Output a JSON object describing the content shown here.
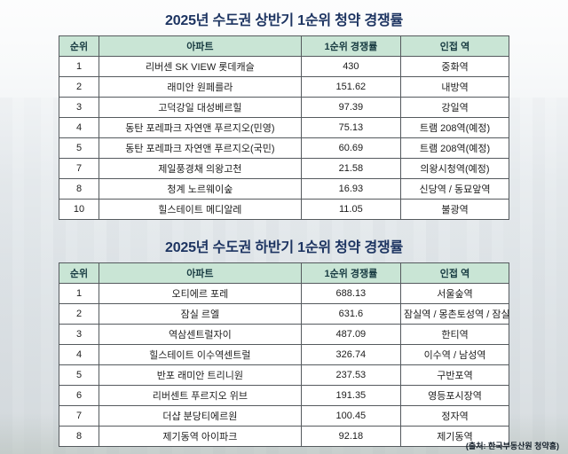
{
  "chart_data": [
    {
      "type": "table",
      "title": "2025년 수도권 상반기 1순위 청약 경쟁률",
      "columns": [
        "순위",
        "아파트",
        "1순위 경쟁률",
        "인접 역"
      ],
      "rows": [
        [
          "1",
          "리버센 SK VIEW 롯데캐슬",
          "430",
          "중화역"
        ],
        [
          "2",
          "래미안 원페를라",
          "151.62",
          "내방역"
        ],
        [
          "3",
          "고덕강일 대성베르힐",
          "97.39",
          "강일역"
        ],
        [
          "4",
          "동탄 포레파크 자연앤 푸르지오(민영)",
          "75.13",
          "트램 208역(예정)"
        ],
        [
          "5",
          "동탄 포레파크 자연앤 푸르지오(국민)",
          "60.69",
          "트램 208역(예정)"
        ],
        [
          "7",
          "제일풍경채 의왕고천",
          "21.58",
          "의왕시청역(예정)"
        ],
        [
          "8",
          "청계 노르웨이숲",
          "16.93",
          "신당역 / 동묘앞역"
        ],
        [
          "10",
          "힐스테이트 메디알레",
          "11.05",
          "불광역"
        ]
      ]
    },
    {
      "type": "table",
      "title": "2025년 수도권 하반기 1순위 청약 경쟁률",
      "columns": [
        "순위",
        "아파트",
        "1순위 경쟁률",
        "인접 역"
      ],
      "rows": [
        [
          "1",
          "오티에르 포레",
          "688.13",
          "서울숲역"
        ],
        [
          "2",
          "잠실 르엘",
          "631.6",
          "잠실역 / 몽촌토성역 / 잠실나루역"
        ],
        [
          "3",
          "역삼센트럴자이",
          "487.09",
          "한티역"
        ],
        [
          "4",
          "힐스테이트 이수역센트럴",
          "326.74",
          "이수역 / 남성역"
        ],
        [
          "5",
          "반포 래미안 트리니원",
          "237.53",
          "구반포역"
        ],
        [
          "6",
          "리버센트 푸르지오 위브",
          "191.35",
          "영등포시장역"
        ],
        [
          "7",
          "더샵 분당티에르원",
          "100.45",
          "정자역"
        ],
        [
          "8",
          "제기동역 아이파크",
          "92.18",
          "제기동역"
        ]
      ]
    }
  ],
  "footer": {
    "source": "(출처: 한국부동산원 청약홈)"
  },
  "colors": {
    "title_text": "#1d3461",
    "header_bg": "#c9e5d5",
    "header_text": "#173a41",
    "border": "#555a5e"
  }
}
